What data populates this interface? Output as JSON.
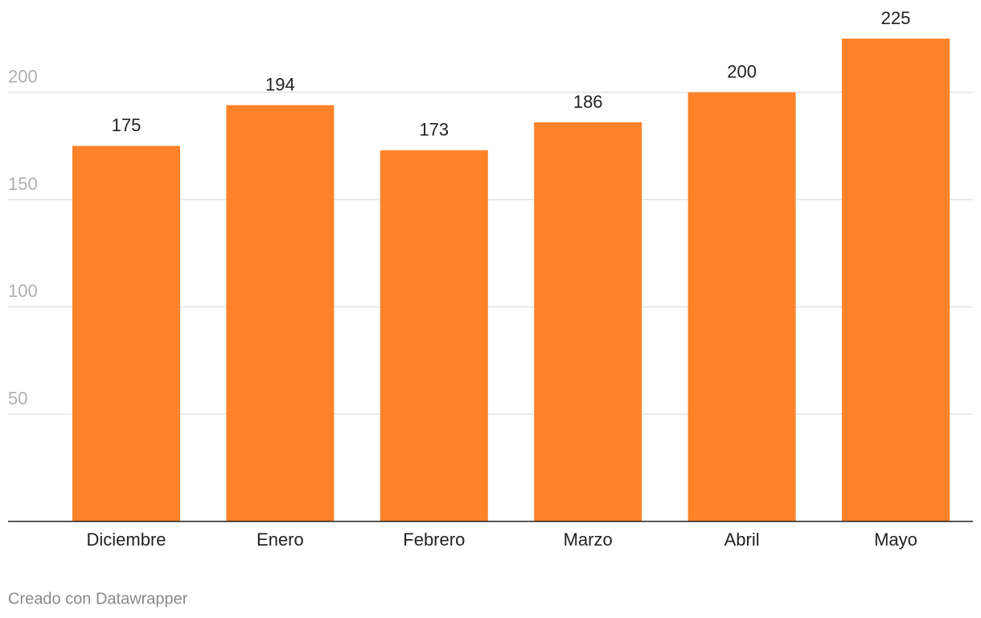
{
  "chart_data": {
    "type": "bar",
    "categories": [
      "Diciembre",
      "Enero",
      "Febrero",
      "Marzo",
      "Abril",
      "Mayo"
    ],
    "values": [
      175,
      194,
      173,
      186,
      200,
      225
    ],
    "color": "#fd8229",
    "ylim": [
      0,
      225
    ],
    "yticks": [
      50,
      100,
      150,
      200
    ],
    "grid": true,
    "credit": "Creado con Datawrapper"
  }
}
